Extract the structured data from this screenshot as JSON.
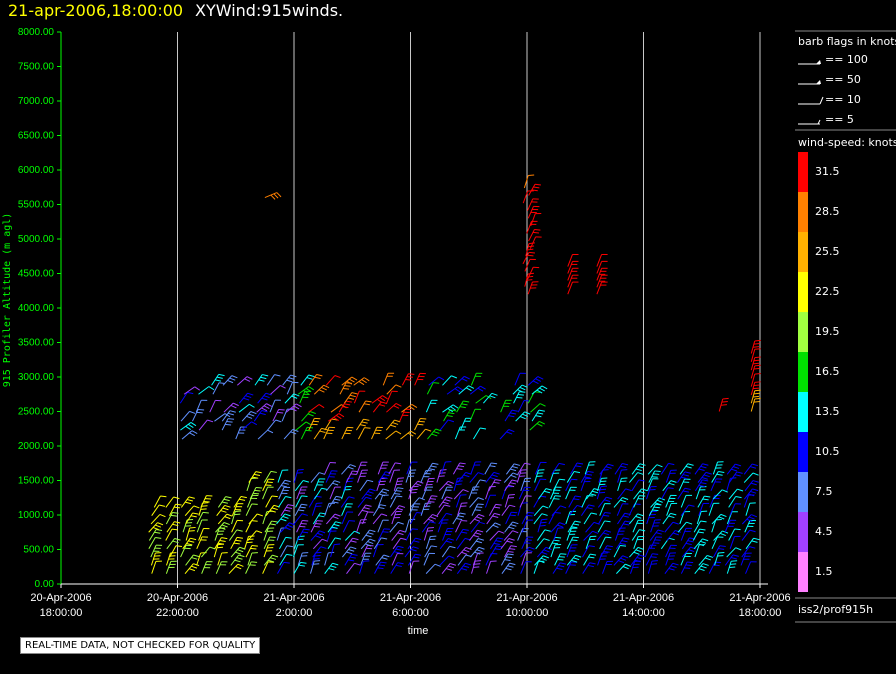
{
  "header": {
    "date_time": "21-apr-2006,18:00:00",
    "plot_name": "XYWind:915winds."
  },
  "legend": {
    "barb_title": "barb flags in knots",
    "barb_flags": [
      {
        "label": "== 100",
        "icon": "pennant-barb-icon"
      },
      {
        "label": "== 50",
        "icon": "pennant-barb-icon"
      },
      {
        "label": "== 10",
        "icon": "full-barb-icon"
      },
      {
        "label": "== 5",
        "icon": "half-barb-icon"
      }
    ],
    "speed_title": "wind-speed: knots",
    "speed_scale": [
      {
        "label": "31.5",
        "color": "#ff0000"
      },
      {
        "label": "28.5",
        "color": "#ff8000"
      },
      {
        "label": "25.5",
        "color": "#ffb000"
      },
      {
        "label": "22.5",
        "color": "#ffff00"
      },
      {
        "label": "19.5",
        "color": "#a0ff40"
      },
      {
        "label": "16.5",
        "color": "#00e000"
      },
      {
        "label": "13.5",
        "color": "#00ffff"
      },
      {
        "label": "10.5",
        "color": "#0000ff"
      },
      {
        "label": "7.5",
        "color": "#6090ff"
      },
      {
        "label": "4.5",
        "color": "#a040ff"
      },
      {
        "label": "1.5",
        "color": "#ff80ff"
      }
    ]
  },
  "footer": {
    "source": "iss2/prof915h",
    "qc_note": "REAL-TIME DATA, NOT CHECKED FOR QUALITY"
  },
  "chart_data": {
    "type": "scatter",
    "ylabel": "915 Profiler Altitude (m agl)",
    "xlabel": "time",
    "ylim": [
      0,
      8000
    ],
    "xlim_hours": [
      0,
      24
    ],
    "y_ticks": [
      "0.00",
      "500.00",
      "1000.00",
      "1500.00",
      "2000.00",
      "2500.00",
      "3000.00",
      "3500.00",
      "4000.00",
      "4500.00",
      "5000.00",
      "5500.00",
      "6000.00",
      "6500.00",
      "7000.00",
      "7500.00",
      "8000.00"
    ],
    "x_ticks": [
      {
        "date": "20-Apr-2006",
        "time": "18:00:00"
      },
      {
        "date": "20-Apr-2006",
        "time": "22:00:00"
      },
      {
        "date": "21-Apr-2006",
        "time": "2:00:00"
      },
      {
        "date": "21-Apr-2006",
        "time": "6:00:00"
      },
      {
        "date": "21-Apr-2006",
        "time": "10:00:00"
      },
      {
        "date": "21-Apr-2006",
        "time": "14:00:00"
      },
      {
        "date": "21-Apr-2006",
        "time": "18:00:00"
      }
    ],
    "grid": "vertical",
    "series": [
      {
        "x_start": 3.3,
        "x_end": 3.5,
        "y": [
          2400,
          2450
        ]
      },
      {
        "x_start": 3.0,
        "x_end": 24.0,
        "y": [
          150,
          300,
          450,
          600,
          750,
          900,
          1050,
          1200,
          1350,
          1500,
          1650,
          1800
        ]
      },
      {
        "x_start": 3.0,
        "x_end": 19.0,
        "y": [
          2000,
          2150,
          2300,
          2450,
          2600,
          2750,
          2900,
          3050
        ]
      },
      {
        "x_start": 15.8,
        "x_end": 16.0,
        "y": [
          4200,
          4400,
          4600,
          4800,
          5000,
          5200,
          5400,
          5600,
          5800
        ]
      },
      {
        "x_start": 7.0,
        "x_end": 7.2,
        "y": [
          5600,
          5700
        ]
      },
      {
        "x_start": 22.0,
        "x_end": 23.8,
        "y": [
          2400,
          2600,
          2800,
          3000,
          3200,
          3400
        ]
      }
    ]
  }
}
